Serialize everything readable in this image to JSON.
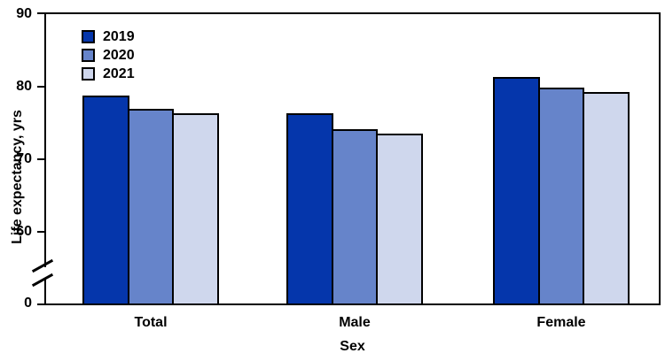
{
  "chart_data": {
    "type": "bar",
    "title": "",
    "categories": [
      "Total",
      "Male",
      "Female"
    ],
    "series": [
      {
        "name": "2019",
        "color": "#0536ab",
        "values": [
          78.8,
          76.3,
          81.4
        ]
      },
      {
        "name": "2020",
        "color": "#6684ca",
        "values": [
          77.0,
          74.2,
          79.9
        ]
      },
      {
        "name": "2021",
        "color": "#cfd7ed",
        "values": [
          76.4,
          73.5,
          79.3
        ]
      }
    ],
    "xlabel": "Sex",
    "ylabel": "Life expectancy, yrs",
    "yticks": [
      90,
      80,
      70,
      60,
      0
    ],
    "ylim": [
      0,
      90
    ],
    "axis_break_between": [
      0,
      60
    ],
    "legend_position": "top-left",
    "grid": false,
    "axis_color": "#000000",
    "background_color": "#ffffff"
  }
}
